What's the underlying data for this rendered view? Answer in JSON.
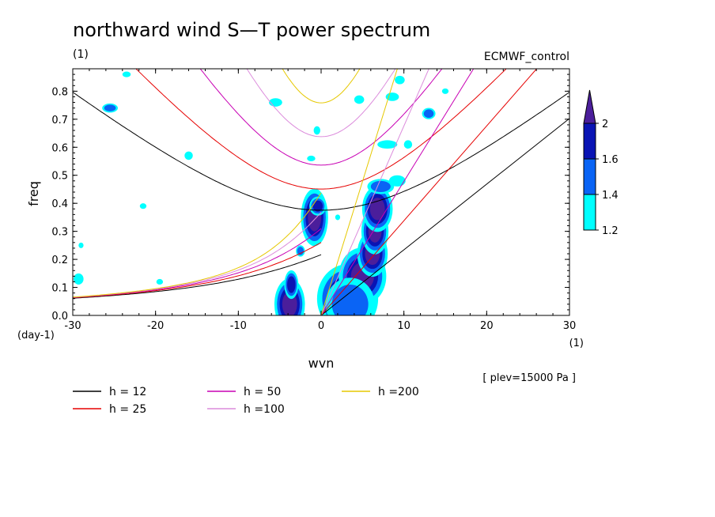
{
  "chart_data": {
    "type": "heatmap",
    "title": "northward wind S—T power spectrum",
    "units_label": "(1)",
    "source_label": "ECMWF_control",
    "xlabel": "wvn",
    "ylabel": "freq",
    "x_unit": "(1)",
    "y_unit": "(day-1)",
    "xlim": [
      -30,
      30
    ],
    "ylim": [
      0,
      0.88
    ],
    "x_ticks": [
      -30,
      -20,
      -10,
      0,
      10,
      20,
      30
    ],
    "x_tick_labels": [
      "-30",
      "-20",
      "-10",
      "0",
      "10",
      "20",
      "30"
    ],
    "y_ticks": [
      0.0,
      0.1,
      0.2,
      0.3,
      0.4,
      0.5,
      0.6,
      0.7,
      0.8
    ],
    "y_tick_labels": [
      "0.0",
      "0.1",
      "0.2",
      "0.3",
      "0.4",
      "0.5",
      "0.6",
      "0.7",
      "0.8"
    ],
    "level_note": "[ plev=15000 Pa ]",
    "colorbar": {
      "levels": [
        1.2,
        1.4,
        1.6,
        2
      ],
      "labels": [
        "1.2",
        "1.4",
        "1.6",
        "2"
      ],
      "colors": [
        "#00ffff",
        "#0a64f5",
        "#0a14b4",
        "#4b1e9b"
      ]
    },
    "dispersion_curves": [
      {
        "name": "h = 12",
        "h": 12,
        "color": "#000000"
      },
      {
        "name": "h = 25",
        "h": 25,
        "color": "#e60000"
      },
      {
        "name": "h = 50",
        "h": 50,
        "color": "#c800b4"
      },
      {
        "name": "h =100",
        "h": 100,
        "color": "#dc8cdc"
      },
      {
        "name": "h =200",
        "h": 200,
        "color": "#e6c800"
      }
    ],
    "blobs": [
      {
        "x": -3.8,
        "y": 0.04,
        "rx": 0.9,
        "ry": 0.045,
        "level": 4
      },
      {
        "x": -3.6,
        "y": 0.11,
        "rx": 0.5,
        "ry": 0.03,
        "level": 3
      },
      {
        "x": 3.2,
        "y": 0.06,
        "rx": 1.8,
        "ry": 0.06,
        "level": 4
      },
      {
        "x": 5.0,
        "y": 0.14,
        "rx": 1.4,
        "ry": 0.05,
        "level": 4
      },
      {
        "x": 6.2,
        "y": 0.22,
        "rx": 0.9,
        "ry": 0.04,
        "level": 4
      },
      {
        "x": 6.5,
        "y": 0.3,
        "rx": 0.8,
        "ry": 0.04,
        "level": 4
      },
      {
        "x": 6.8,
        "y": 0.38,
        "rx": 0.9,
        "ry": 0.04,
        "level": 4
      },
      {
        "x": -0.8,
        "y": 0.35,
        "rx": 0.8,
        "ry": 0.05,
        "level": 4
      },
      {
        "x": -0.4,
        "y": 0.39,
        "rx": 0.6,
        "ry": 0.02,
        "level": 3
      },
      {
        "x": -2.5,
        "y": 0.23,
        "rx": 0.4,
        "ry": 0.015,
        "level": 2
      },
      {
        "x": 3.5,
        "y": 0.04,
        "rx": 2.2,
        "ry": 0.07,
        "level": 2
      },
      {
        "x": 7.2,
        "y": 0.46,
        "rx": 1.2,
        "ry": 0.02,
        "level": 2
      },
      {
        "x": 9.2,
        "y": 0.48,
        "rx": 1.0,
        "ry": 0.02,
        "level": 1
      },
      {
        "x": 13,
        "y": 0.72,
        "rx": 0.6,
        "ry": 0.015,
        "level": 2
      },
      {
        "x": 8.0,
        "y": 0.61,
        "rx": 1.2,
        "ry": 0.015,
        "level": 1
      },
      {
        "x": -25.5,
        "y": 0.74,
        "rx": 0.7,
        "ry": 0.012,
        "level": 2
      },
      {
        "x": -29.3,
        "y": 0.13,
        "rx": 0.6,
        "ry": 0.02,
        "level": 1
      },
      {
        "x": -29.0,
        "y": 0.25,
        "rx": 0.3,
        "ry": 0.01,
        "level": 1
      },
      {
        "x": -21.5,
        "y": 0.39,
        "rx": 0.4,
        "ry": 0.01,
        "level": 1
      },
      {
        "x": -16.0,
        "y": 0.57,
        "rx": 0.5,
        "ry": 0.015,
        "level": 1
      },
      {
        "x": -5.5,
        "y": 0.76,
        "rx": 0.8,
        "ry": 0.015,
        "level": 1
      },
      {
        "x": -1.2,
        "y": 0.56,
        "rx": 0.5,
        "ry": 0.01,
        "level": 1
      },
      {
        "x": 8.6,
        "y": 0.78,
        "rx": 0.8,
        "ry": 0.015,
        "level": 1
      },
      {
        "x": 9.5,
        "y": 0.84,
        "rx": 0.6,
        "ry": 0.015,
        "level": 1
      },
      {
        "x": -0.5,
        "y": 0.66,
        "rx": 0.4,
        "ry": 0.015,
        "level": 1
      },
      {
        "x": 4.6,
        "y": 0.77,
        "rx": 0.6,
        "ry": 0.015,
        "level": 1
      },
      {
        "x": 10.5,
        "y": 0.61,
        "rx": 0.5,
        "ry": 0.015,
        "level": 1
      },
      {
        "x": 15,
        "y": 0.8,
        "rx": 0.4,
        "ry": 0.01,
        "level": 1
      },
      {
        "x": -19.5,
        "y": 0.12,
        "rx": 0.4,
        "ry": 0.01,
        "level": 1
      },
      {
        "x": -23.5,
        "y": 0.86,
        "rx": 0.5,
        "ry": 0.01,
        "level": 1
      },
      {
        "x": 2.0,
        "y": 0.35,
        "rx": 0.3,
        "ry": 0.01,
        "level": 1
      }
    ]
  }
}
